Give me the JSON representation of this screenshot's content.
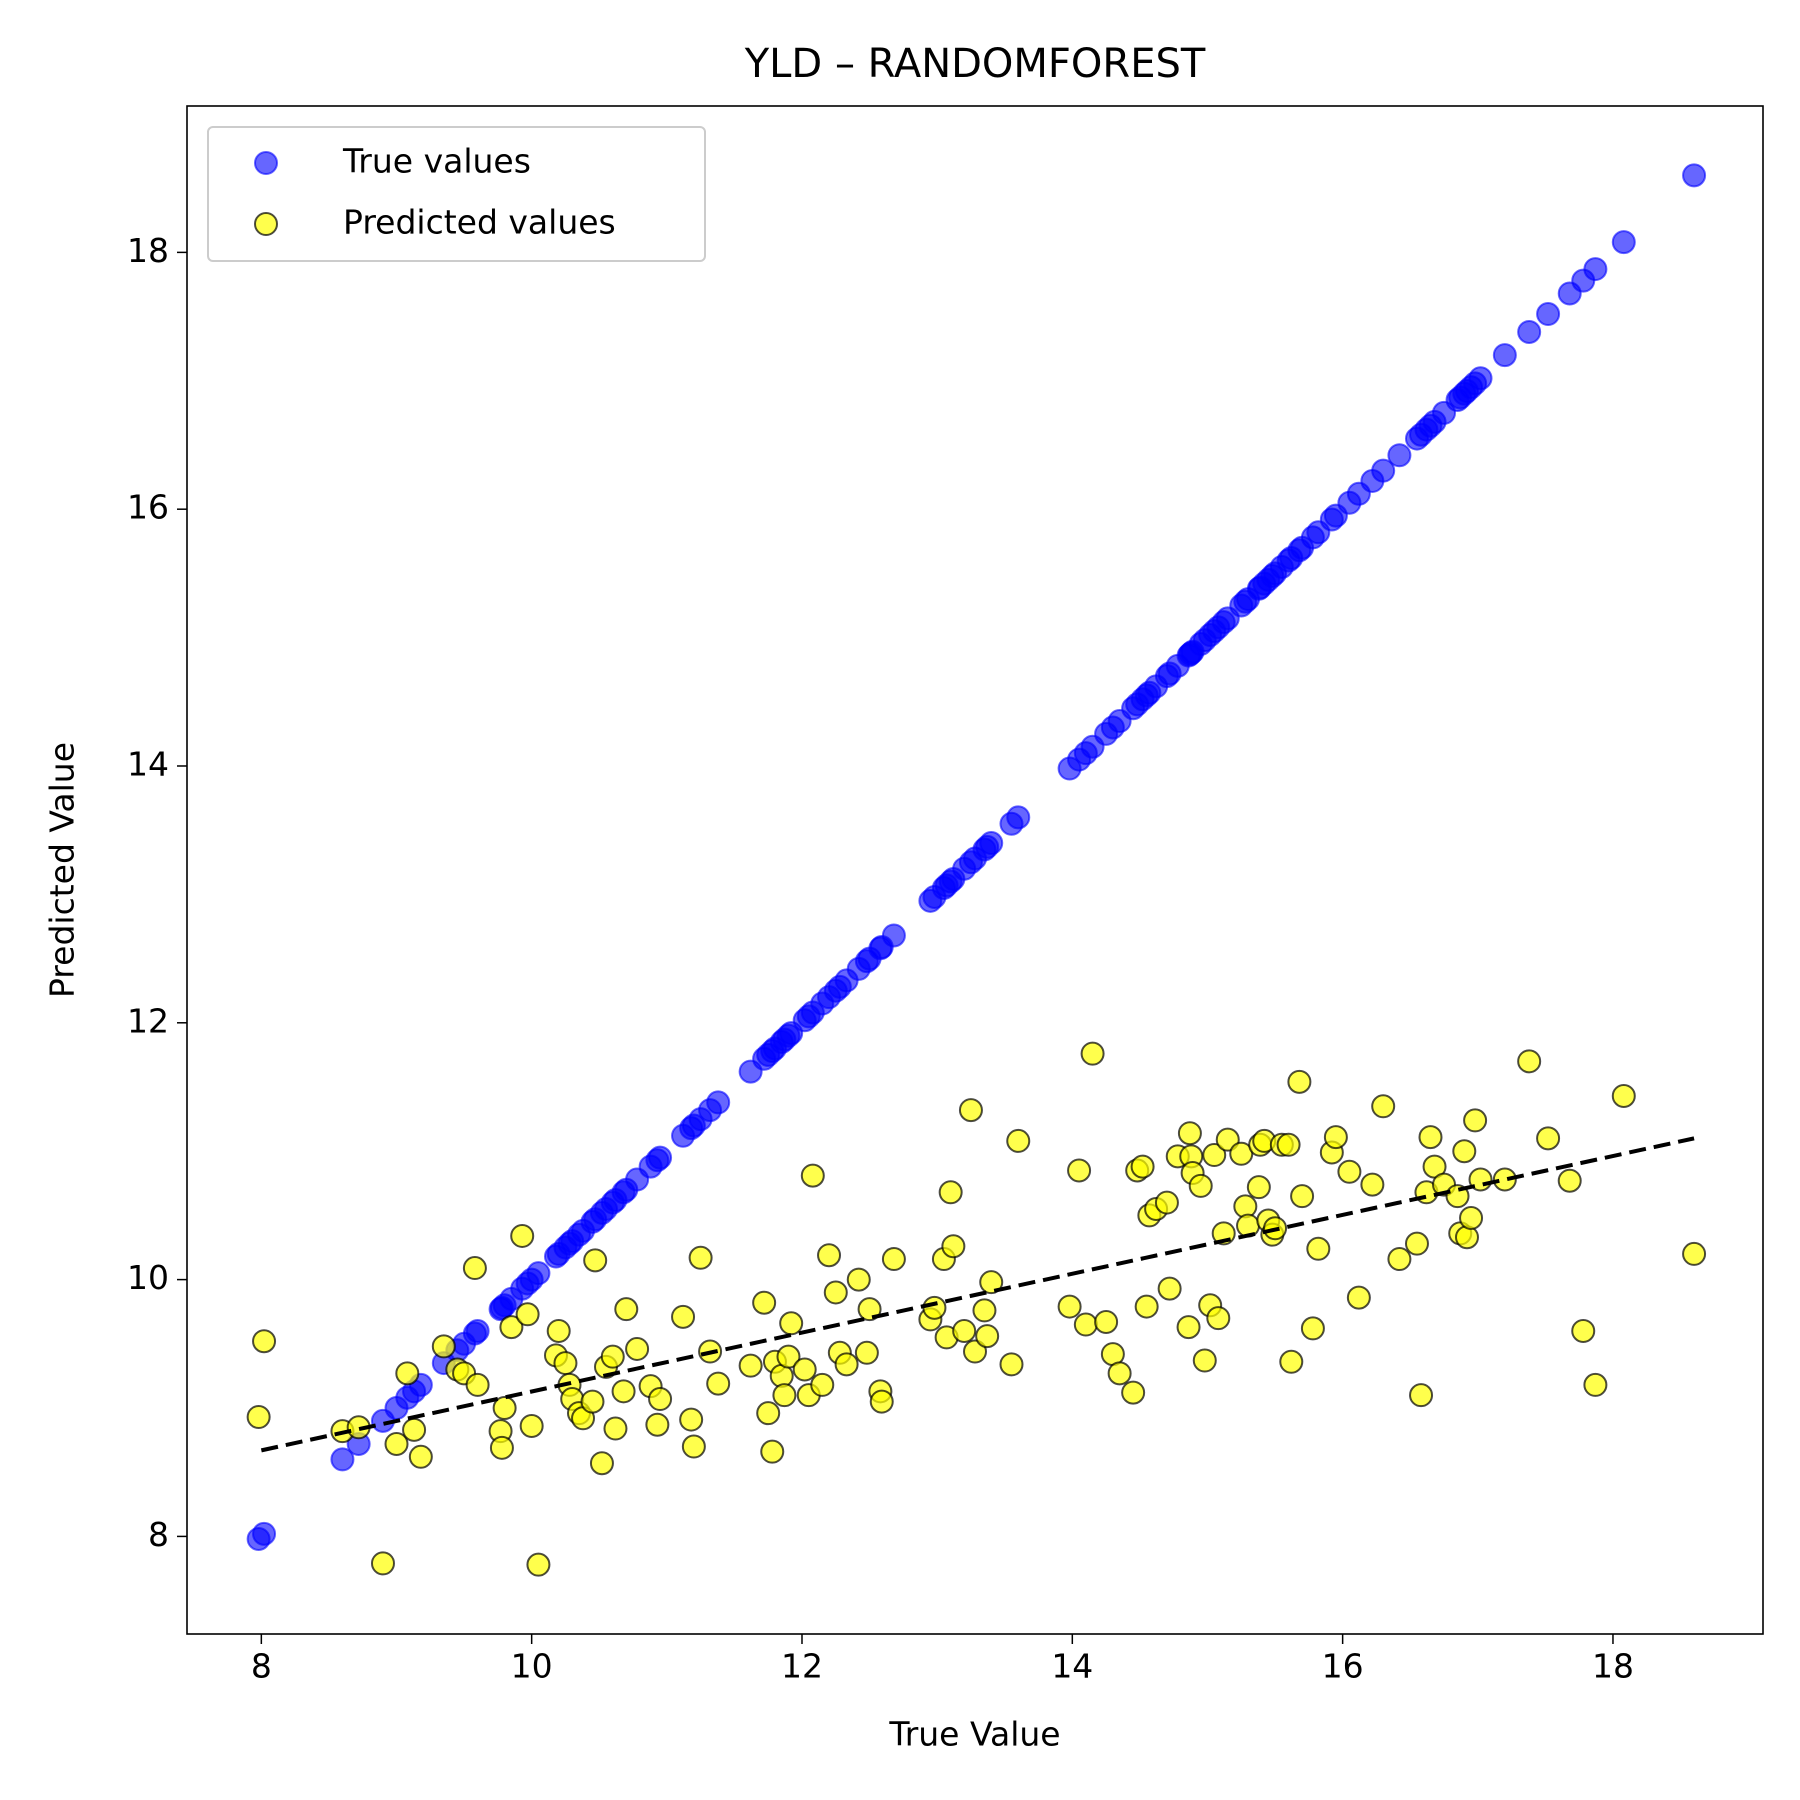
{
  "chart_data": {
    "type": "scatter",
    "title": "YLD – RANDOMFOREST",
    "xlabel": "True Value",
    "ylabel": "Predicted Value",
    "xlim": [
      7.45,
      19.11
    ],
    "ylim": [
      7.24,
      19.14
    ],
    "xticks": [
      8,
      10,
      12,
      14,
      16,
      18
    ],
    "yticks": [
      8,
      10,
      12,
      14,
      16,
      18
    ],
    "legend": "upper left",
    "x": [
      7.98,
      8.02,
      8.6,
      8.72,
      8.9,
      9.0,
      9.08,
      9.13,
      9.18,
      9.35,
      9.45,
      9.5,
      9.58,
      9.6,
      9.77,
      9.78,
      9.8,
      9.85,
      9.93,
      9.97,
      10.0,
      10.05,
      10.18,
      10.2,
      10.25,
      10.28,
      10.3,
      10.35,
      10.38,
      10.45,
      10.47,
      10.52,
      10.55,
      10.6,
      10.62,
      10.68,
      10.7,
      10.78,
      10.88,
      10.93,
      10.95,
      11.12,
      11.18,
      11.2,
      11.25,
      11.32,
      11.38,
      11.62,
      11.72,
      11.75,
      11.78,
      11.8,
      11.85,
      11.87,
      11.9,
      11.92,
      12.02,
      12.05,
      12.08,
      12.15,
      12.2,
      12.25,
      12.28,
      12.33,
      12.42,
      12.48,
      12.5,
      12.58,
      12.59,
      12.68,
      12.95,
      12.98,
      13.05,
      13.07,
      13.1,
      13.12,
      13.2,
      13.25,
      13.28,
      13.35,
      13.37,
      13.4,
      13.55,
      13.6,
      13.98,
      14.05,
      14.1,
      14.15,
      14.25,
      14.3,
      14.35,
      14.45,
      14.48,
      14.52,
      14.55,
      14.57,
      14.62,
      14.7,
      14.72,
      14.78,
      14.87,
      14.88,
      14.89,
      14.86,
      14.95,
      14.98,
      15.02,
      15.05,
      15.08,
      15.12,
      15.15,
      15.25,
      15.28,
      15.3,
      15.38,
      15.39,
      15.42,
      15.45,
      15.48,
      15.5,
      15.55,
      15.6,
      15.62,
      15.68,
      15.7,
      15.78,
      15.82,
      15.92,
      15.95,
      16.05,
      16.12,
      16.22,
      16.3,
      16.42,
      16.55,
      16.58,
      16.62,
      16.65,
      16.68,
      16.75,
      16.85,
      16.87,
      16.9,
      16.92,
      16.95,
      16.98,
      17.02,
      17.2,
      17.38,
      17.52,
      17.68,
      17.78,
      17.87,
      18.08,
      18.6
    ],
    "series": [
      {
        "name": "True values",
        "color": "#0000ff",
        "edgecolor": "#0000ff",
        "alpha": 0.6,
        "values": [
          7.98,
          8.02,
          8.6,
          8.72,
          8.9,
          9.0,
          9.08,
          9.13,
          9.18,
          9.35,
          9.45,
          9.5,
          9.58,
          9.6,
          9.77,
          9.78,
          9.8,
          9.85,
          9.93,
          9.97,
          10.0,
          10.05,
          10.18,
          10.2,
          10.25,
          10.28,
          10.3,
          10.35,
          10.38,
          10.45,
          10.47,
          10.52,
          10.55,
          10.6,
          10.62,
          10.68,
          10.7,
          10.78,
          10.88,
          10.93,
          10.95,
          11.12,
          11.18,
          11.2,
          11.25,
          11.32,
          11.38,
          11.62,
          11.72,
          11.75,
          11.78,
          11.8,
          11.85,
          11.87,
          11.9,
          11.92,
          12.02,
          12.05,
          12.08,
          12.15,
          12.2,
          12.25,
          12.28,
          12.33,
          12.42,
          12.48,
          12.5,
          12.58,
          12.59,
          12.68,
          12.95,
          12.98,
          13.05,
          13.07,
          13.1,
          13.12,
          13.2,
          13.25,
          13.28,
          13.35,
          13.37,
          13.4,
          13.55,
          13.6,
          13.98,
          14.05,
          14.1,
          14.15,
          14.25,
          14.3,
          14.35,
          14.45,
          14.48,
          14.52,
          14.55,
          14.57,
          14.62,
          14.7,
          14.72,
          14.78,
          14.87,
          14.88,
          14.89,
          14.86,
          14.95,
          14.98,
          15.02,
          15.05,
          15.08,
          15.12,
          15.15,
          15.25,
          15.28,
          15.3,
          15.38,
          15.39,
          15.42,
          15.45,
          15.48,
          15.5,
          15.55,
          15.6,
          15.62,
          15.68,
          15.7,
          15.78,
          15.82,
          15.92,
          15.95,
          16.05,
          16.12,
          16.22,
          16.3,
          16.42,
          16.55,
          16.58,
          16.62,
          16.65,
          16.68,
          16.75,
          16.85,
          16.87,
          16.9,
          16.92,
          16.95,
          16.98,
          17.02,
          17.2,
          17.38,
          17.52,
          17.68,
          17.78,
          17.87,
          18.08,
          18.6
        ]
      },
      {
        "name": "Predicted values",
        "color": "#ffff00",
        "edgecolor": "#000000",
        "alpha": 0.7,
        "values": [
          8.93,
          9.52,
          8.82,
          8.85,
          7.79,
          8.72,
          9.27,
          8.83,
          8.62,
          9.48,
          9.3,
          9.27,
          10.09,
          9.18,
          8.82,
          8.69,
          9.0,
          9.63,
          10.34,
          9.73,
          8.86,
          7.78,
          9.41,
          9.6,
          9.35,
          9.18,
          9.07,
          8.96,
          8.92,
          9.05,
          10.15,
          8.57,
          9.32,
          9.4,
          8.84,
          9.13,
          9.77,
          9.46,
          9.17,
          8.87,
          9.07,
          9.71,
          8.91,
          8.7,
          10.17,
          9.44,
          9.19,
          9.33,
          9.82,
          8.96,
          8.66,
          9.36,
          9.25,
          9.1,
          9.4,
          9.66,
          9.3,
          9.1,
          10.81,
          9.18,
          10.19,
          9.9,
          9.43,
          9.34,
          10.0,
          9.43,
          9.77,
          9.13,
          9.05,
          10.16,
          9.69,
          9.78,
          10.16,
          9.55,
          10.68,
          10.26,
          9.6,
          11.32,
          9.44,
          9.76,
          9.56,
          9.98,
          9.34,
          11.08,
          9.79,
          10.85,
          9.65,
          11.76,
          9.67,
          9.42,
          9.27,
          9.12,
          10.85,
          10.88,
          9.79,
          10.5,
          10.55,
          10.6,
          9.93,
          10.96,
          11.14,
          10.96,
          10.83,
          9.63,
          10.73,
          9.37,
          9.8,
          10.97,
          9.7,
          10.36,
          11.09,
          10.98,
          10.57,
          10.42,
          10.72,
          11.05,
          11.08,
          10.46,
          10.35,
          10.4,
          11.05,
          11.05,
          9.36,
          11.54,
          10.65,
          9.62,
          10.24,
          10.99,
          11.11,
          10.84,
          9.86,
          10.74,
          11.35,
          10.16,
          10.28,
          9.1,
          10.68,
          11.11,
          10.88,
          10.74,
          10.65,
          10.36,
          11.0,
          10.33,
          10.48,
          11.24,
          10.78,
          10.78,
          11.7,
          11.1,
          10.77,
          9.6,
          9.18,
          11.43,
          10.2
        ]
      }
    ],
    "trend": {
      "x": [
        8.0,
        18.6
      ],
      "y": [
        8.67,
        11.1
      ],
      "color": "#000000",
      "style": "dashed"
    }
  }
}
